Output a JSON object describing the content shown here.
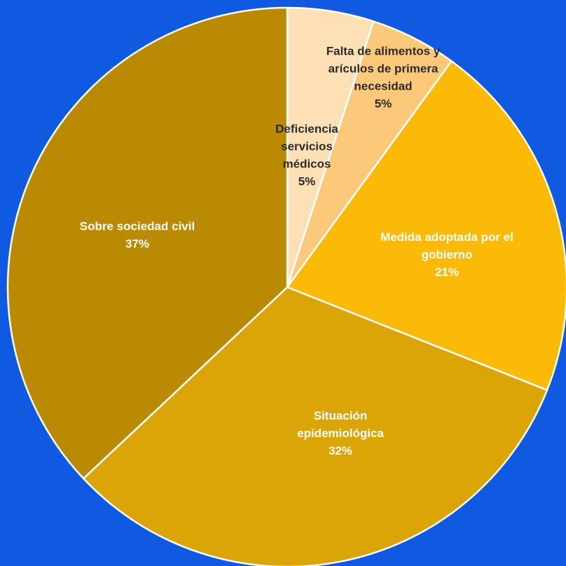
{
  "background_color": "#0f5ae0",
  "chart_data": {
    "type": "pie",
    "slices": [
      {
        "label_lines": [
          "Deficiencia",
          "servicios",
          "médicos"
        ],
        "value_label": "5%",
        "value": 5,
        "color": "#fde0b5",
        "text_color": "#2b2b2b"
      },
      {
        "label_lines": [
          "Falta de alimentos y",
          "arículos de primera",
          "necesidad"
        ],
        "value_label": "5%",
        "value": 5,
        "color": "#fcc97b",
        "text_color": "#2b2b2b"
      },
      {
        "label_lines": [
          "Medida adoptada por el",
          "gobierno"
        ],
        "value_label": "21%",
        "value": 21,
        "color": "#fbb908",
        "text_color": "#ffffff"
      },
      {
        "label_lines": [
          "Situación",
          "epidemiológica"
        ],
        "value_label": "32%",
        "value": 32,
        "color": "#dba508",
        "text_color": "#ffffff"
      },
      {
        "label_lines": [
          "Sobre sociedad civil"
        ],
        "value_label": "37%",
        "value": 37,
        "color": "#bb8a04",
        "text_color": "#ffffff"
      }
    ],
    "slice_border_color": "#ffffff",
    "start_angle_deg": 0,
    "direction": "clockwise"
  }
}
